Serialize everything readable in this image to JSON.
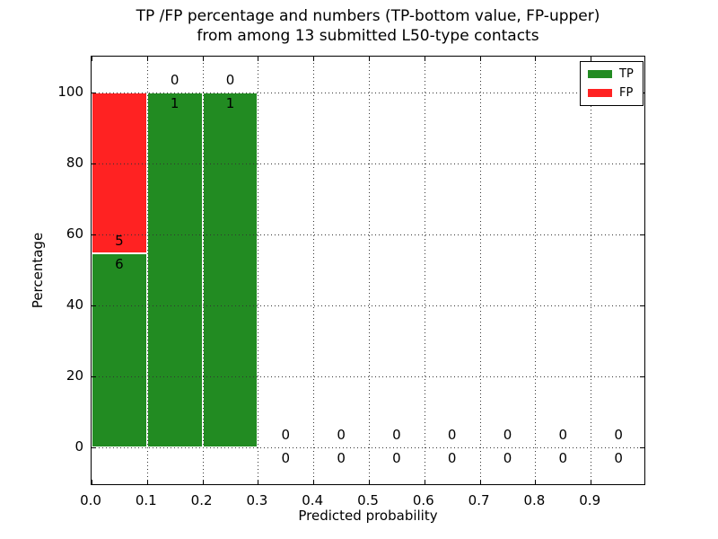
{
  "title": {
    "line1": "TP /FP percentage and numbers (TP-bottom value, FP-upper)",
    "line2": "from among 13 submitted L50-type contacts"
  },
  "chart_data": {
    "type": "bar",
    "stacked": true,
    "title": "TP /FP percentage and numbers (TP-bottom value, FP-upper) from among 13 submitted L50-type contacts",
    "xlabel": "Predicted probability",
    "ylabel": "Percentage",
    "total_contacts": 13,
    "xlim": [
      0,
      1.0
    ],
    "ylim": [
      -11,
      110
    ],
    "grid": true,
    "legend_position": "upper right",
    "bin_width": 0.1,
    "bin_centers": [
      0.05,
      0.15,
      0.25,
      0.35,
      0.45,
      0.55,
      0.65,
      0.75,
      0.85,
      0.95
    ],
    "series": [
      {
        "name": "TP",
        "color": "#228b22",
        "counts": [
          6,
          1,
          1,
          0,
          0,
          0,
          0,
          0,
          0,
          0
        ],
        "percent": [
          54.55,
          100,
          100,
          0,
          0,
          0,
          0,
          0,
          0,
          0
        ]
      },
      {
        "name": "FP",
        "color": "#ff2222",
        "counts": [
          5,
          0,
          0,
          0,
          0,
          0,
          0,
          0,
          0,
          0
        ],
        "percent": [
          45.45,
          0,
          0,
          0,
          0,
          0,
          0,
          0,
          0,
          0
        ]
      }
    ],
    "y_ticks": [
      0,
      20,
      40,
      60,
      80,
      100
    ],
    "x_ticks": [
      "0.0",
      "0.1",
      "0.2",
      "0.3",
      "0.4",
      "0.5",
      "0.6",
      "0.7",
      "0.8",
      "0.9"
    ],
    "label_rule": "at each bin: TP count shown below TP bar top, FP count shown above TP bar top"
  }
}
